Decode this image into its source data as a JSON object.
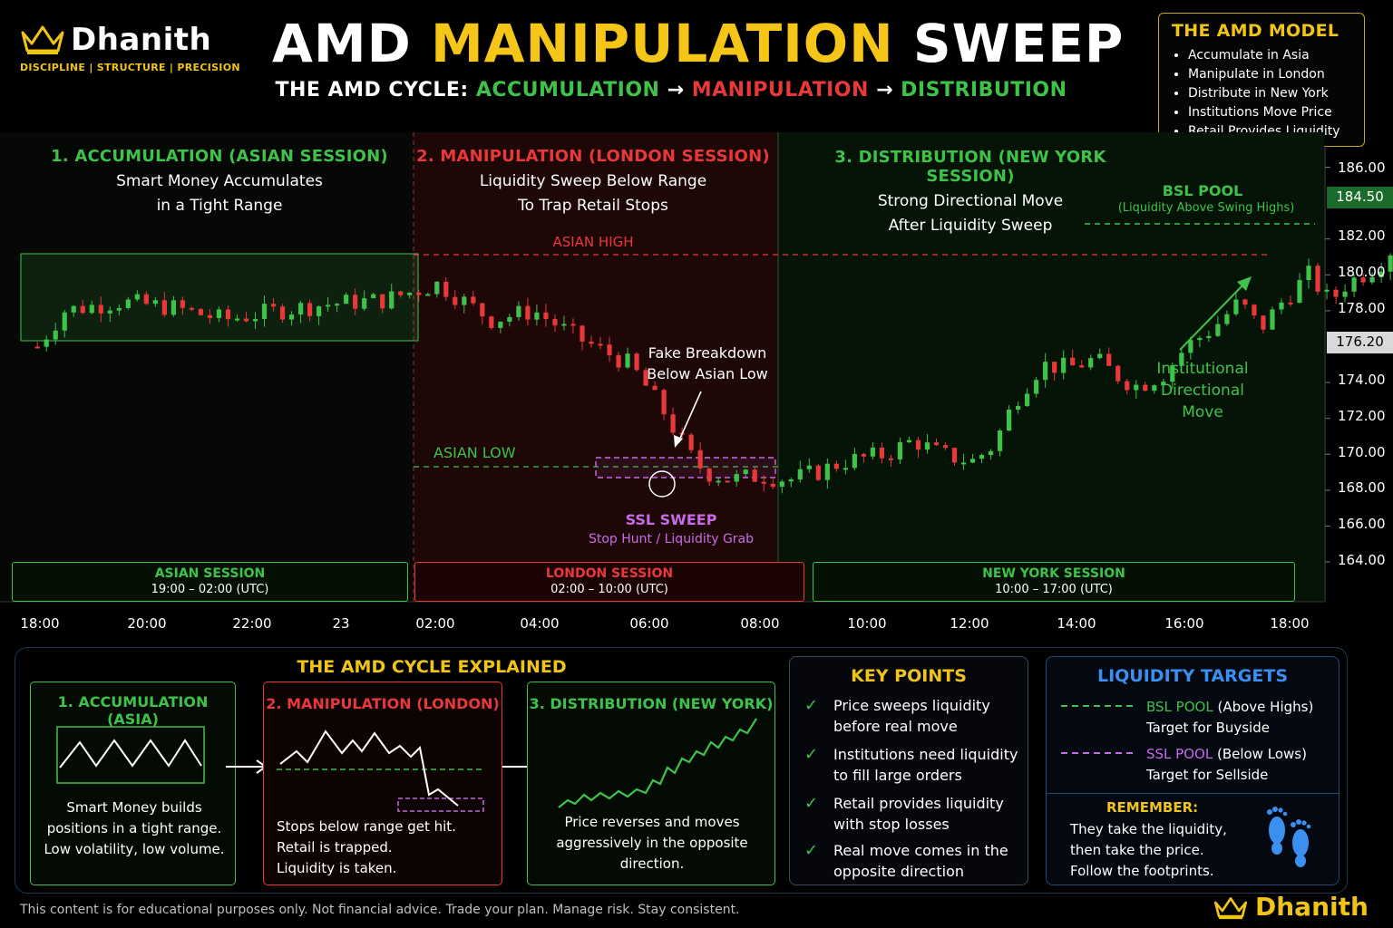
{
  "brand": {
    "name": "Dhanith",
    "tagline": "DISCIPLINE | STRUCTURE | PRECISION"
  },
  "title": {
    "part1": "AMD",
    "part2": "MANIPULATION",
    "part3": "SWEEP"
  },
  "subtitle": {
    "lead": "THE AMD CYCLE:",
    "s1": "ACCUMULATION",
    "arrow": "→",
    "s2": "MANIPULATION",
    "s3": "DISTRIBUTION"
  },
  "model": {
    "heading": "THE AMD MODEL",
    "items": [
      "Accumulate in Asia",
      "Manipulate in London",
      "Distribute in New York",
      "Institutions Move Price",
      "Retail Provides Liquidity"
    ]
  },
  "phases": [
    {
      "heading": "1. ACCUMULATION (ASIAN SESSION)",
      "line1": "Smart Money Accumulates",
      "line2": "in a Tight Range"
    },
    {
      "heading": "2. MANIPULATION (LONDON SESSION)",
      "line1": "Liquidity Sweep Below Range",
      "line2": "To Trap Retail Stops"
    },
    {
      "heading": "3. DISTRIBUTION (NEW YORK SESSION)",
      "line1": "Strong Directional Move",
      "line2": "After Liquidity Sweep"
    }
  ],
  "annotations": {
    "asian_high": "ASIAN HIGH",
    "asian_low": "ASIAN LOW",
    "fake_1": "Fake Breakdown",
    "fake_2": "Below Asian Low",
    "ssl_title": "SSL SWEEP",
    "ssl_sub": "Stop Hunt / Liquidity Grab",
    "bsl_title": "BSL POOL",
    "bsl_sub": "(Liquidity Above Swing Highs)",
    "inst_1": "Institutional",
    "inst_2": "Directional",
    "inst_3": "Move"
  },
  "sessions": [
    {
      "name": "ASIAN SESSION",
      "time": "19:00 – 02:00 (UTC)"
    },
    {
      "name": "LONDON SESSION",
      "time": "02:00 – 10:00 (UTC)"
    },
    {
      "name": "NEW YORK SESSION",
      "time": "10:00 – 17:00 (UTC)"
    }
  ],
  "colors": {
    "bull": "#3fc24a",
    "bear": "#e8383a",
    "accent": "#f0c419",
    "ssl": "#c86be8",
    "bsl": "#3fc24a"
  },
  "chart_data": {
    "type": "candlestick",
    "x_ticks": [
      "18:00",
      "20:00",
      "22:00",
      "23",
      "02:00",
      "04:00",
      "06:00",
      "08:00",
      "10:00",
      "12:00",
      "14:00",
      "16:00",
      "18:00"
    ],
    "y_ticks": [
      "186.00",
      "182.00",
      "180.00",
      "178.00",
      "174.00",
      "172.00",
      "170.00",
      "168.00",
      "166.00",
      "164.00"
    ],
    "ylim": [
      163,
      187
    ],
    "price_labels": {
      "upper": "184.50",
      "current": "176.20"
    },
    "levels": {
      "asian_high": 181.0,
      "asian_low": 169.2,
      "bsl_pool": 182.7
    },
    "close_path": [
      [
        17.5,
        176.0
      ],
      [
        18.0,
        178.0
      ],
      [
        19.0,
        178.5
      ],
      [
        20.0,
        178.2
      ],
      [
        21.0,
        177.5
      ],
      [
        22.0,
        178.0
      ],
      [
        23.0,
        178.4
      ],
      [
        24.0,
        178.6
      ],
      [
        25.0,
        179.5
      ],
      [
        26.0,
        177.5
      ],
      [
        26.8,
        178.0
      ],
      [
        27.6,
        176.5
      ],
      [
        28.6,
        175.0
      ],
      [
        29.2,
        172.5
      ],
      [
        29.7,
        170.0
      ],
      [
        30.0,
        169.0
      ],
      [
        30.5,
        168.6
      ],
      [
        31.0,
        168.8
      ],
      [
        31.6,
        168.6
      ],
      [
        32.1,
        169.0
      ],
      [
        32.6,
        169.6
      ],
      [
        33.4,
        170.0
      ],
      [
        33.9,
        170.8
      ],
      [
        34.4,
        170.0
      ],
      [
        35.0,
        169.6
      ],
      [
        35.4,
        170.5
      ],
      [
        35.8,
        173.0
      ],
      [
        36.3,
        175.0
      ],
      [
        36.8,
        174.8
      ],
      [
        37.3,
        175.3
      ],
      [
        37.8,
        174.2
      ],
      [
        38.1,
        173.8
      ],
      [
        38.6,
        174.5
      ],
      [
        39.0,
        176.0
      ],
      [
        39.5,
        177.0
      ],
      [
        40.0,
        178.5
      ],
      [
        40.4,
        177.0
      ],
      [
        40.8,
        178.5
      ],
      [
        41.3,
        180.0
      ],
      [
        41.7,
        178.5
      ],
      [
        42.0,
        179.5
      ],
      [
        42.6,
        180.5
      ],
      [
        43.0,
        182.0
      ]
    ]
  },
  "explainer": {
    "heading": "THE AMD CYCLE EXPLAINED",
    "cards": [
      {
        "heading": "1. ACCUMULATION (ASIA)",
        "lines": [
          "Smart Money builds",
          "positions in a tight range.",
          "Low volatility, low volume."
        ]
      },
      {
        "heading": "2. MANIPULATION (LONDON)",
        "lines": [
          "Stops below range get hit.",
          "Retail is trapped.",
          "Liquidity is taken."
        ]
      },
      {
        "heading": "3. DISTRIBUTION (NEW YORK)",
        "lines": [
          "Price reverses and moves",
          "aggressively in the opposite",
          "direction."
        ]
      }
    ]
  },
  "key_points": {
    "heading": "KEY POINTS",
    "items": [
      [
        "Price sweeps liquidity",
        "before real move"
      ],
      [
        "Institutions need liquidity",
        "to fill large orders"
      ],
      [
        "Retail provides liquidity",
        "with stop losses"
      ],
      [
        "Real move comes in the",
        "opposite direction"
      ]
    ]
  },
  "liquidity_targets": {
    "heading": "LIQUIDITY TARGETS",
    "bsl_name": "BSL POOL",
    "bsl_desc": "(Above Highs)",
    "bsl_target": "Target for Buyside",
    "ssl_name": "SSL POOL",
    "ssl_desc": "(Below Lows)",
    "ssl_target": "Target for Sellside",
    "remember_heading": "REMEMBER:",
    "remember_lines": [
      "They take the liquidity,",
      "then take the price.",
      "Follow the footprints."
    ]
  },
  "footer": "This content is for educational purposes only. Not financial advice. Trade your plan. Manage risk. Stay consistent."
}
